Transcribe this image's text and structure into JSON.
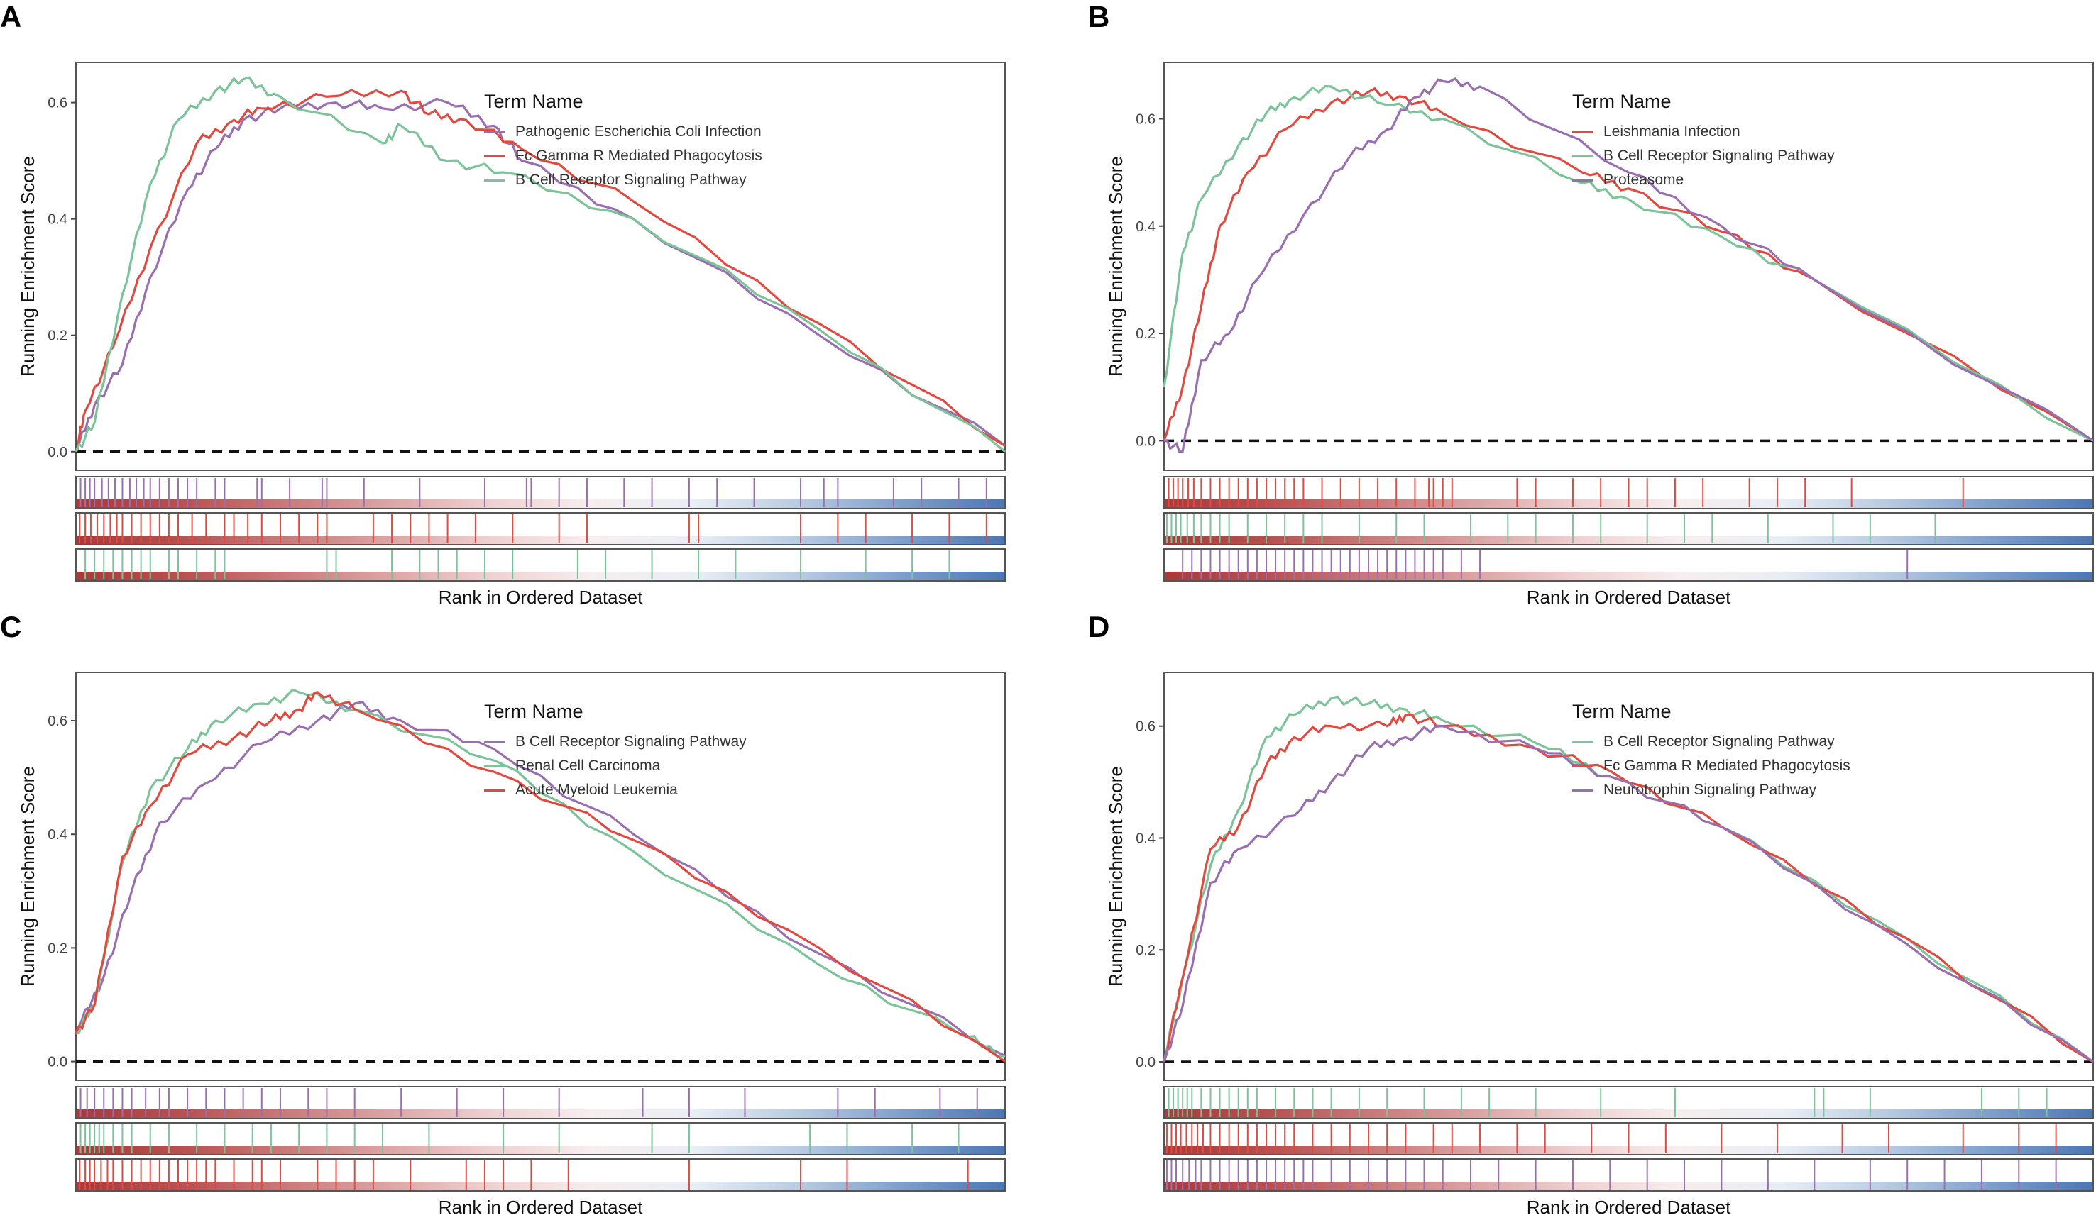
{
  "colors": {
    "purple": "#9a6fb0",
    "red": "#e04a40",
    "green": "#7cc39a"
  },
  "legend_title": "Term Name",
  "chart_data": [
    {
      "type": "line",
      "panel": "A",
      "ylabel": "Running Enrichment Score",
      "xlabel": "Rank in Ordered Dataset",
      "xlim": [
        0,
        100
      ],
      "ylim": [
        -0.032,
        0.669
      ],
      "yticks": [
        "0.0",
        "0.2",
        "0.4",
        "0.6"
      ],
      "ytick_values": [
        0,
        0.2,
        0.4,
        0.6
      ],
      "legend_placement": "top-center",
      "series": [
        {
          "name": "Pathogenic Escherichia Coli Infection",
          "color": "purple",
          "x": [
            0,
            2,
            5,
            8,
            12,
            15,
            18,
            22,
            28,
            33,
            40,
            45,
            48,
            60,
            80,
            100
          ],
          "y": [
            0,
            0.08,
            0.15,
            0.3,
            0.45,
            0.52,
            0.57,
            0.59,
            0.6,
            0.59,
            0.6,
            0.56,
            0.5,
            0.4,
            0.2,
            0.01
          ],
          "hits": [
            0.5,
            1,
            1.5,
            2,
            2.8,
            3.5,
            4.2,
            5,
            5.8,
            6.5,
            7.3,
            8,
            9,
            10,
            11,
            12,
            13,
            15,
            16,
            19.5,
            20,
            23,
            26.5,
            27,
            31,
            37,
            44,
            48.5,
            49,
            52,
            55,
            59,
            62,
            66,
            69,
            73,
            78,
            80.5,
            82,
            88,
            91,
            95,
            98
          ]
        },
        {
          "name": "Fc Gamma R Mediated Phagocytosis",
          "color": "red",
          "x": [
            0,
            1,
            4,
            8,
            13,
            17,
            20,
            27,
            35,
            38,
            42,
            48,
            60,
            80,
            100
          ],
          "y": [
            0,
            0.07,
            0.18,
            0.35,
            0.53,
            0.57,
            0.59,
            0.61,
            0.62,
            0.58,
            0.57,
            0.52,
            0.43,
            0.22,
            0.01
          ],
          "hits": [
            0.4,
            1,
            1.6,
            2.3,
            3,
            3.7,
            4.4,
            5,
            6,
            7,
            8,
            9,
            10,
            11,
            12.5,
            14,
            16,
            17,
            18.5,
            20,
            22,
            24,
            26,
            27,
            32,
            34,
            36,
            38,
            40,
            43,
            47,
            52,
            55,
            66,
            67,
            78,
            82,
            85,
            90,
            94,
            98
          ]
        },
        {
          "name": "B Cell Receptor Signaling Pathway",
          "color": "green",
          "x": [
            0,
            2,
            5,
            8,
            11,
            15,
            18,
            22,
            33,
            35,
            40,
            46,
            60,
            80,
            100
          ],
          "y": [
            0,
            0.05,
            0.27,
            0.46,
            0.57,
            0.62,
            0.64,
            0.61,
            0.53,
            0.56,
            0.5,
            0.48,
            0.4,
            0.21,
            0
          ],
          "hits": [
            1,
            2,
            3,
            4,
            5,
            6,
            7,
            8,
            10,
            11,
            13,
            15,
            16,
            27,
            28,
            34,
            37,
            39,
            41,
            44,
            47,
            54,
            57,
            62,
            67,
            71,
            78,
            85,
            90,
            94
          ]
        }
      ]
    },
    {
      "type": "line",
      "panel": "B",
      "ylabel": "Running Enrichment Score",
      "xlabel": "Rank in Ordered Dataset",
      "xlim": [
        0,
        100
      ],
      "ylim": [
        -0.055,
        0.705
      ],
      "yticks": [
        "0.0",
        "0.2",
        "0.4",
        "0.6"
      ],
      "ytick_values": [
        0,
        0.2,
        0.4,
        0.6
      ],
      "legend_placement": "top-center",
      "series": [
        {
          "name": "Leishmania Infection",
          "color": "red",
          "x": [
            0,
            2,
            4,
            6,
            9,
            13,
            18,
            22,
            26,
            30,
            45,
            50,
            60,
            70,
            100
          ],
          "y": [
            0,
            0.1,
            0.25,
            0.4,
            0.5,
            0.58,
            0.63,
            0.65,
            0.64,
            0.61,
            0.5,
            0.47,
            0.39,
            0.3,
            0
          ],
          "hits": [
            0.5,
            1,
            1.5,
            2,
            2.6,
            3.2,
            4,
            5,
            6,
            7,
            8,
            9,
            10,
            11,
            12,
            13,
            14,
            15,
            17,
            19,
            21,
            23,
            25,
            27,
            29,
            28.5,
            30,
            31,
            38,
            40,
            44,
            47,
            50,
            52,
            55,
            58,
            63,
            66,
            69,
            74,
            86
          ]
        },
        {
          "name": "B Cell Receptor Signaling Pathway",
          "color": "green",
          "x": [
            0,
            2,
            4,
            8,
            11,
            14,
            18,
            23,
            30,
            45,
            50,
            60,
            70,
            100
          ],
          "y": [
            0.1,
            0.35,
            0.45,
            0.55,
            0.61,
            0.64,
            0.66,
            0.63,
            0.6,
            0.48,
            0.45,
            0.38,
            0.3,
            0
          ],
          "hits": [
            0.3,
            0.8,
            1.3,
            1.8,
            2.5,
            3.2,
            4,
            5,
            6,
            7,
            9,
            11,
            13,
            15,
            17,
            21,
            25,
            28,
            33,
            37,
            40,
            44,
            47,
            52,
            56,
            59,
            65,
            72,
            76,
            83
          ]
        },
        {
          "name": "Proteasome",
          "color": "purple",
          "x": [
            0,
            2,
            4,
            7,
            10,
            15,
            20,
            24,
            27,
            30,
            34,
            50,
            60,
            70,
            100
          ],
          "y": [
            0,
            -0.02,
            0.15,
            0.2,
            0.3,
            0.42,
            0.53,
            0.58,
            0.64,
            0.67,
            0.66,
            0.5,
            0.4,
            0.3,
            0
          ],
          "hits": [
            2,
            3,
            4,
            5,
            6,
            7,
            8,
            9,
            10,
            11,
            12,
            13,
            14,
            15,
            16,
            17,
            18,
            19,
            20,
            21,
            22,
            23,
            24,
            25,
            26,
            27,
            28,
            29,
            30,
            32,
            34,
            80
          ]
        }
      ]
    },
    {
      "type": "line",
      "panel": "C",
      "ylabel": "Running Enrichment Score",
      "xlabel": "Rank in Ordered Dataset",
      "xlim": [
        0,
        100
      ],
      "ylim": [
        -0.033,
        0.685
      ],
      "yticks": [
        "0.0",
        "0.2",
        "0.4",
        "0.6"
      ],
      "ytick_values": [
        0,
        0.2,
        0.4,
        0.6
      ],
      "legend_placement": "top-center",
      "series": [
        {
          "name": "B Cell Receptor Signaling Pathway",
          "color": "purple",
          "x": [
            0,
            3,
            6,
            9,
            14,
            20,
            26,
            30,
            35,
            45,
            60,
            80,
            100
          ],
          "y": [
            0.05,
            0.15,
            0.3,
            0.42,
            0.49,
            0.56,
            0.6,
            0.63,
            0.6,
            0.55,
            0.4,
            0.19,
            0.01
          ],
          "hits": [
            0.5,
            1.2,
            2,
            3,
            4,
            5,
            6,
            7.5,
            9,
            10,
            12,
            14,
            16,
            18,
            20,
            22,
            25,
            27,
            30,
            35,
            41,
            46,
            52,
            61,
            66,
            72,
            82,
            86,
            93,
            97
          ]
        },
        {
          "name": "Renal Cell Carcinoma",
          "color": "green",
          "x": [
            0,
            2,
            5,
            8,
            12,
            15,
            20,
            24,
            30,
            45,
            60,
            80,
            95,
            100
          ],
          "y": [
            0.05,
            0.1,
            0.35,
            0.48,
            0.55,
            0.6,
            0.63,
            0.65,
            0.62,
            0.53,
            0.37,
            0.17,
            0.05,
            0.01
          ],
          "hits": [
            0.5,
            1,
            1.5,
            2,
            2.5,
            3,
            4,
            5,
            6,
            8,
            10,
            13,
            16,
            19,
            21,
            24,
            27,
            30,
            33,
            38,
            46,
            52,
            62,
            66,
            79,
            83,
            90,
            95
          ]
        },
        {
          "name": "Acute Myeloid Leukemia",
          "color": "red",
          "x": [
            0,
            2,
            5,
            8,
            12,
            17,
            21,
            24,
            26,
            30,
            45,
            60,
            80,
            100
          ],
          "y": [
            0.05,
            0.1,
            0.36,
            0.45,
            0.54,
            0.57,
            0.6,
            0.62,
            0.65,
            0.62,
            0.51,
            0.39,
            0.2,
            0
          ],
          "hits": [
            0.4,
            1,
            1.5,
            2,
            2.7,
            3.4,
            4,
            5,
            6,
            7,
            8,
            9,
            10,
            11,
            12,
            13,
            14,
            15,
            17,
            19,
            20,
            22,
            26,
            28,
            30,
            32,
            36,
            42,
            44,
            46,
            49,
            53,
            66,
            78,
            83,
            96
          ]
        }
      ]
    },
    {
      "type": "line",
      "panel": "D",
      "ylabel": "Running Enrichment Score",
      "xlabel": "Rank in Ordered Dataset",
      "xlim": [
        0,
        100
      ],
      "ylim": [
        -0.033,
        0.696
      ],
      "yticks": [
        "0.0",
        "0.2",
        "0.4",
        "0.6"
      ],
      "ytick_values": [
        0,
        0.2,
        0.4,
        0.6
      ],
      "legend_placement": "top-center",
      "series": [
        {
          "name": "B Cell Receptor Signaling Pathway",
          "color": "green",
          "x": [
            0,
            2,
            5,
            8,
            11,
            14,
            18,
            22,
            26,
            30,
            40,
            48,
            60,
            80,
            100
          ],
          "y": [
            0,
            0.15,
            0.35,
            0.45,
            0.58,
            0.62,
            0.65,
            0.64,
            0.63,
            0.61,
            0.57,
            0.51,
            0.42,
            0.22,
            0
          ],
          "hits": [
            0.5,
            1,
            1.5,
            2,
            2.5,
            3,
            4,
            5,
            6,
            7,
            8,
            9,
            10,
            12,
            14,
            16,
            18,
            21,
            24,
            28,
            32,
            35,
            40,
            47,
            55,
            70,
            71,
            76,
            88,
            92,
            95
          ]
        },
        {
          "name": "Fc Gamma R Mediated Phagocytosis",
          "color": "red",
          "x": [
            0,
            2,
            5,
            8,
            11,
            14,
            18,
            24,
            26,
            30,
            40,
            48,
            60,
            80,
            100
          ],
          "y": [
            0,
            0.15,
            0.38,
            0.42,
            0.53,
            0.58,
            0.6,
            0.6,
            0.62,
            0.6,
            0.56,
            0.52,
            0.42,
            0.22,
            0
          ],
          "hits": [
            0.3,
            0.8,
            1.3,
            1.8,
            2.4,
            3,
            3.6,
            4.2,
            5,
            6,
            7,
            8,
            9,
            10,
            11,
            12,
            13,
            14,
            16,
            18,
            20,
            22,
            24,
            26,
            29,
            31,
            34,
            38,
            41,
            46,
            50,
            54,
            60,
            66,
            73,
            78,
            86,
            92,
            96
          ]
        },
        {
          "name": "Neurotrophin Signaling Pathway",
          "color": "purple",
          "x": [
            0,
            2,
            5,
            8,
            14,
            18,
            22,
            26,
            30,
            40,
            48,
            60,
            80,
            100
          ],
          "y": [
            0,
            0.1,
            0.32,
            0.38,
            0.44,
            0.5,
            0.56,
            0.58,
            0.6,
            0.56,
            0.51,
            0.42,
            0.21,
            0
          ],
          "hits": [
            0.3,
            0.8,
            1.3,
            2,
            2.7,
            3.4,
            4,
            5,
            6,
            7,
            8,
            9,
            10,
            11,
            12,
            13,
            14,
            15,
            16,
            18,
            20,
            22,
            24,
            26,
            28,
            30,
            33,
            36,
            40,
            44,
            48,
            52,
            56,
            60,
            65,
            70,
            76,
            80,
            84,
            88,
            92,
            96
          ]
        }
      ]
    }
  ]
}
